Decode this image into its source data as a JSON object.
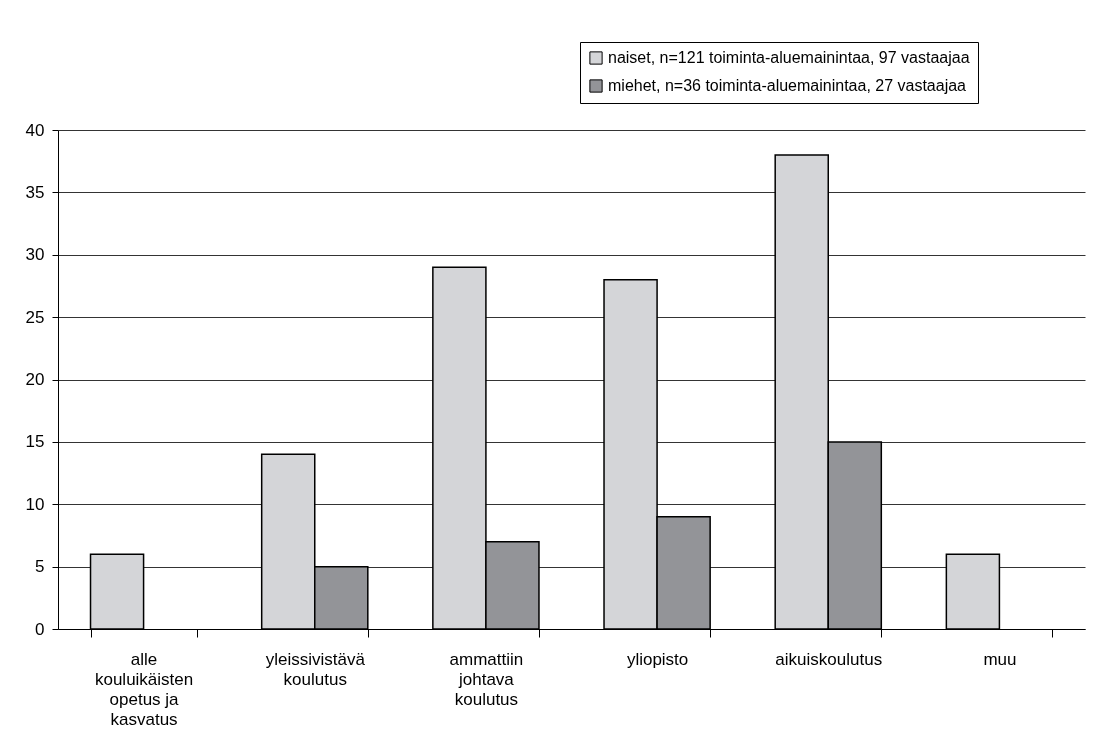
{
  "chart_data": {
    "type": "bar",
    "categories": [
      "alle\nkouluikäisten\nopetus ja\nkasvatus",
      "yleissivistävä\nkoulutus",
      "ammattiin\njohtava\nkoulutus",
      "yliopisto",
      "aikuiskoulutus",
      "muu"
    ],
    "series": [
      {
        "name": "naiset, n=121 toiminta-aluemainintaa, 97 vastaajaa",
        "color": "#d4d5d8",
        "values": [
          6,
          14,
          29,
          28,
          38,
          6
        ]
      },
      {
        "name": "miehet, n=36 toiminta-aluemainintaa, 27 vastaajaa",
        "color": "#939498",
        "values": [
          null,
          5,
          7,
          9,
          15,
          null
        ]
      }
    ],
    "ylim": [
      0,
      40
    ],
    "yticks": [
      0,
      5,
      10,
      15,
      20,
      25,
      30,
      35,
      40
    ],
    "grid": "y",
    "legend": "top right"
  }
}
